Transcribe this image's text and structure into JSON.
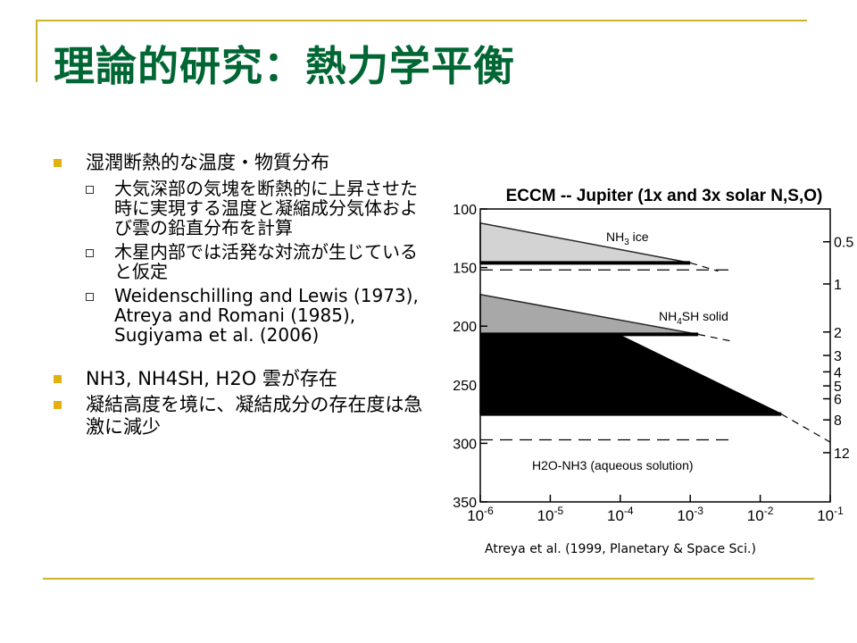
{
  "theme": {
    "accent": "#cdb42a",
    "title_color": "#006633",
    "bullet_color": "#e3b10f"
  },
  "title": "理論的研究：熱力学平衡",
  "bullets": [
    {
      "level": 1,
      "text": "湿潤断熱的な温度・物質分布"
    },
    {
      "level": 2,
      "text": "大気深部の気塊を断熱的に上昇させた時に実現する温度と凝縮成分気体および雲の鉛直分布を計算"
    },
    {
      "level": 2,
      "text": "木星内部では活発な対流が生じていると仮定"
    },
    {
      "level": 2,
      "text": "Weidenschilling and Lewis (1973), Atreya and Romani (1985), Sugiyama et al. (2006)"
    },
    {
      "level": 1,
      "text": "NH3, NH4SH, H2O 雲が存在"
    },
    {
      "level": 1,
      "text": "凝結高度を境に、凝結成分の存在度は急激に減少"
    }
  ],
  "caption": "Atreya et al. (1999, Planetary &  Space Sci.)",
  "chart_data": {
    "type": "area",
    "title": "ECCM -- Jupiter (1x and 3x solar N,S,O)",
    "xscale": "log",
    "xlim": [
      1e-06,
      0.1
    ],
    "x_ticks": [
      "10-6",
      "10-5",
      "10-4",
      "10-3",
      "10-2",
      "10-1"
    ],
    "x_tick_values": [
      1e-06,
      1e-05,
      0.0001,
      0.001,
      0.01,
      0.1
    ],
    "ylim": [
      100,
      350
    ],
    "y_left_ticks": [
      100,
      150,
      200,
      250,
      300,
      350
    ],
    "y_right_ticks": [
      {
        "label": "0.5",
        "left_value": 128
      },
      {
        "label": "1",
        "left_value": 164
      },
      {
        "label": "2",
        "left_value": 205
      },
      {
        "label": "3",
        "left_value": 225
      },
      {
        "label": "4",
        "left_value": 239
      },
      {
        "label": "5",
        "left_value": 251
      },
      {
        "label": "6",
        "left_value": 262
      },
      {
        "label": "8",
        "left_value": 280
      },
      {
        "label": "12",
        "left_value": 308
      }
    ],
    "clouds": [
      {
        "label": "NH3 ice",
        "fill": "#cccccc",
        "top": [
          [
            1e-06,
            112
          ],
          [
            0.001,
            146
          ]
        ],
        "base_y": 146,
        "base_x": 0.001,
        "dash_to": [
          [
            0.001,
            146
          ],
          [
            0.0025,
            153
          ]
        ]
      },
      {
        "label": "NH4SH solid",
        "fill": "#999999",
        "top": [
          [
            1e-06,
            173
          ],
          [
            0.0013,
            207
          ]
        ],
        "base_y": 207,
        "base_x": 0.0013,
        "dash_to": [
          [
            0.0013,
            207
          ],
          [
            0.004,
            213
          ]
        ]
      },
      {
        "label": "H2O-NH3 (aqueous solution)",
        "fill": "#000000",
        "top": [
          [
            1e-06,
            208
          ],
          [
            0.0001,
            208
          ],
          [
            0.02,
            275
          ]
        ],
        "base_y": 275,
        "base_x": 0.02,
        "dash_to": [
          [
            0.02,
            275
          ],
          [
            0.1,
            299
          ]
        ]
      }
    ],
    "dashed_levels": [
      152,
      297
    ]
  }
}
